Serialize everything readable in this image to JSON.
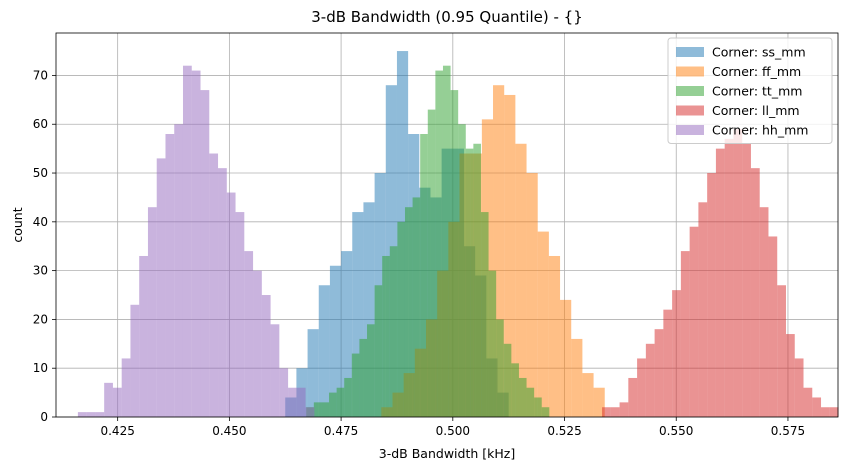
{
  "chart_data": {
    "type": "histogram",
    "title": "3-dB Bandwidth (0.95 Quantile) - {}",
    "xlabel": "3-dB Bandwidth [kHz]",
    "ylabel": "count",
    "xlim": [
      0.4112,
      0.5862
    ],
    "ylim": [
      0,
      78.7
    ],
    "xticks": [
      0.425,
      0.45,
      0.475,
      0.5,
      0.525,
      0.55,
      0.575
    ],
    "xtick_labels": [
      "0.425",
      "0.450",
      "0.475",
      "0.500",
      "0.525",
      "0.550",
      "0.575"
    ],
    "yticks": [
      0,
      10,
      20,
      30,
      40,
      50,
      60,
      70
    ],
    "grid": true,
    "legend_position": "top-right",
    "alpha": 0.5,
    "series": [
      {
        "name": "Corner: ss_mm",
        "color": "#1f77b4",
        "bin_start": 0.4625,
        "bin_width": 0.0025,
        "counts": [
          4,
          10,
          18,
          27,
          31,
          34,
          42,
          44,
          50,
          68,
          75,
          58,
          47,
          45,
          55,
          55,
          35,
          29,
          12,
          5
        ]
      },
      {
        "name": "Corner: ff_mm",
        "color": "#ff7f0e",
        "bin_start": 0.484,
        "bin_width": 0.0025,
        "counts": [
          2,
          5,
          9,
          14,
          20,
          30,
          40,
          54,
          54,
          61,
          68,
          66,
          56,
          50,
          38,
          33,
          24,
          16,
          9,
          6
        ]
      },
      {
        "name": "Corner: tt_mm",
        "color": "#2ca02c",
        "bin_start": 0.4672,
        "bin_width": 0.0017,
        "counts": [
          2,
          3,
          3,
          5,
          6,
          8,
          13,
          16,
          19,
          27,
          33,
          35,
          40,
          43,
          45,
          58,
          63,
          71,
          72,
          67,
          60,
          55,
          56,
          42,
          30,
          20,
          15,
          11,
          8,
          6,
          4,
          2
        ]
      },
      {
        "name": "Corner: ll_mm",
        "color": "#d62728",
        "bin_start": 0.5334,
        "bin_width": 0.00196,
        "counts": [
          2,
          2,
          3,
          8,
          12,
          15,
          18,
          22,
          26,
          34,
          39,
          44,
          50,
          55,
          57,
          59,
          56,
          51,
          43,
          37,
          27,
          17,
          12,
          6,
          4,
          2,
          2
        ]
      },
      {
        "name": "Corner: hh_mm",
        "color": "#9467bd",
        "bin_start": 0.4161,
        "bin_width": 0.00196,
        "counts": [
          1,
          1,
          1,
          7,
          6,
          12,
          23,
          33,
          43,
          53,
          58,
          60,
          72,
          71,
          67,
          54,
          51,
          46,
          42,
          34,
          30,
          25,
          19,
          10,
          6,
          6,
          2
        ]
      }
    ],
    "draw_order": [
      "Corner: ss_mm",
      "Corner: ff_mm",
      "Corner: tt_mm",
      "Corner: ll_mm",
      "Corner: hh_mm"
    ]
  }
}
